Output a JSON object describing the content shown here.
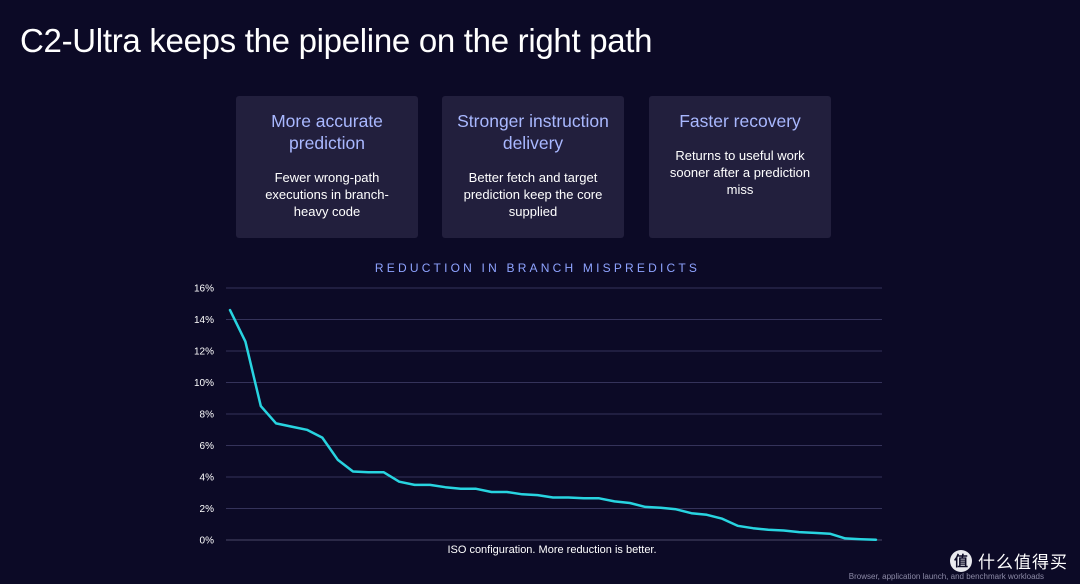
{
  "page": {
    "title": "C2-Ultra keeps the pipeline on the right path"
  },
  "cards": [
    {
      "heading": "More accurate prediction",
      "body": "Fewer wrong-path executions in branch-heavy code"
    },
    {
      "heading": "Stronger instruction delivery",
      "body": "Better fetch and target prediction keep the core supplied"
    },
    {
      "heading": "Faster recovery",
      "body": "Returns to useful work sooner after a prediction miss"
    }
  ],
  "chart_data": {
    "type": "line",
    "title": "REDUCTION IN BRANCH MISPREDICTS",
    "xlabel": "ISO configuration. More reduction is better.",
    "ylabel": "",
    "y_tick_labels": [
      "0%",
      "2%",
      "4%",
      "6%",
      "8%",
      "10%",
      "12%",
      "14%",
      "16%"
    ],
    "ylim": [
      0,
      16
    ],
    "grid": true,
    "line_color": "#28d4e0",
    "series": [
      {
        "values": [
          14.6,
          12.6,
          8.5,
          7.4,
          7.2,
          7.0,
          6.5,
          5.1,
          4.35,
          4.3,
          4.3,
          3.7,
          3.5,
          3.5,
          3.35,
          3.25,
          3.25,
          3.05,
          3.05,
          2.9,
          2.85,
          2.7,
          2.7,
          2.65,
          2.65,
          2.45,
          2.35,
          2.1,
          2.05,
          1.95,
          1.7,
          1.6,
          1.35,
          0.9,
          0.75,
          0.65,
          0.6,
          0.5,
          0.45,
          0.4,
          0.1,
          0.05,
          0.02
        ]
      }
    ],
    "footnote": "Browser, application launch, and benchmark workloads"
  },
  "watermark": {
    "symbol": "值",
    "text": "什么值得买"
  }
}
